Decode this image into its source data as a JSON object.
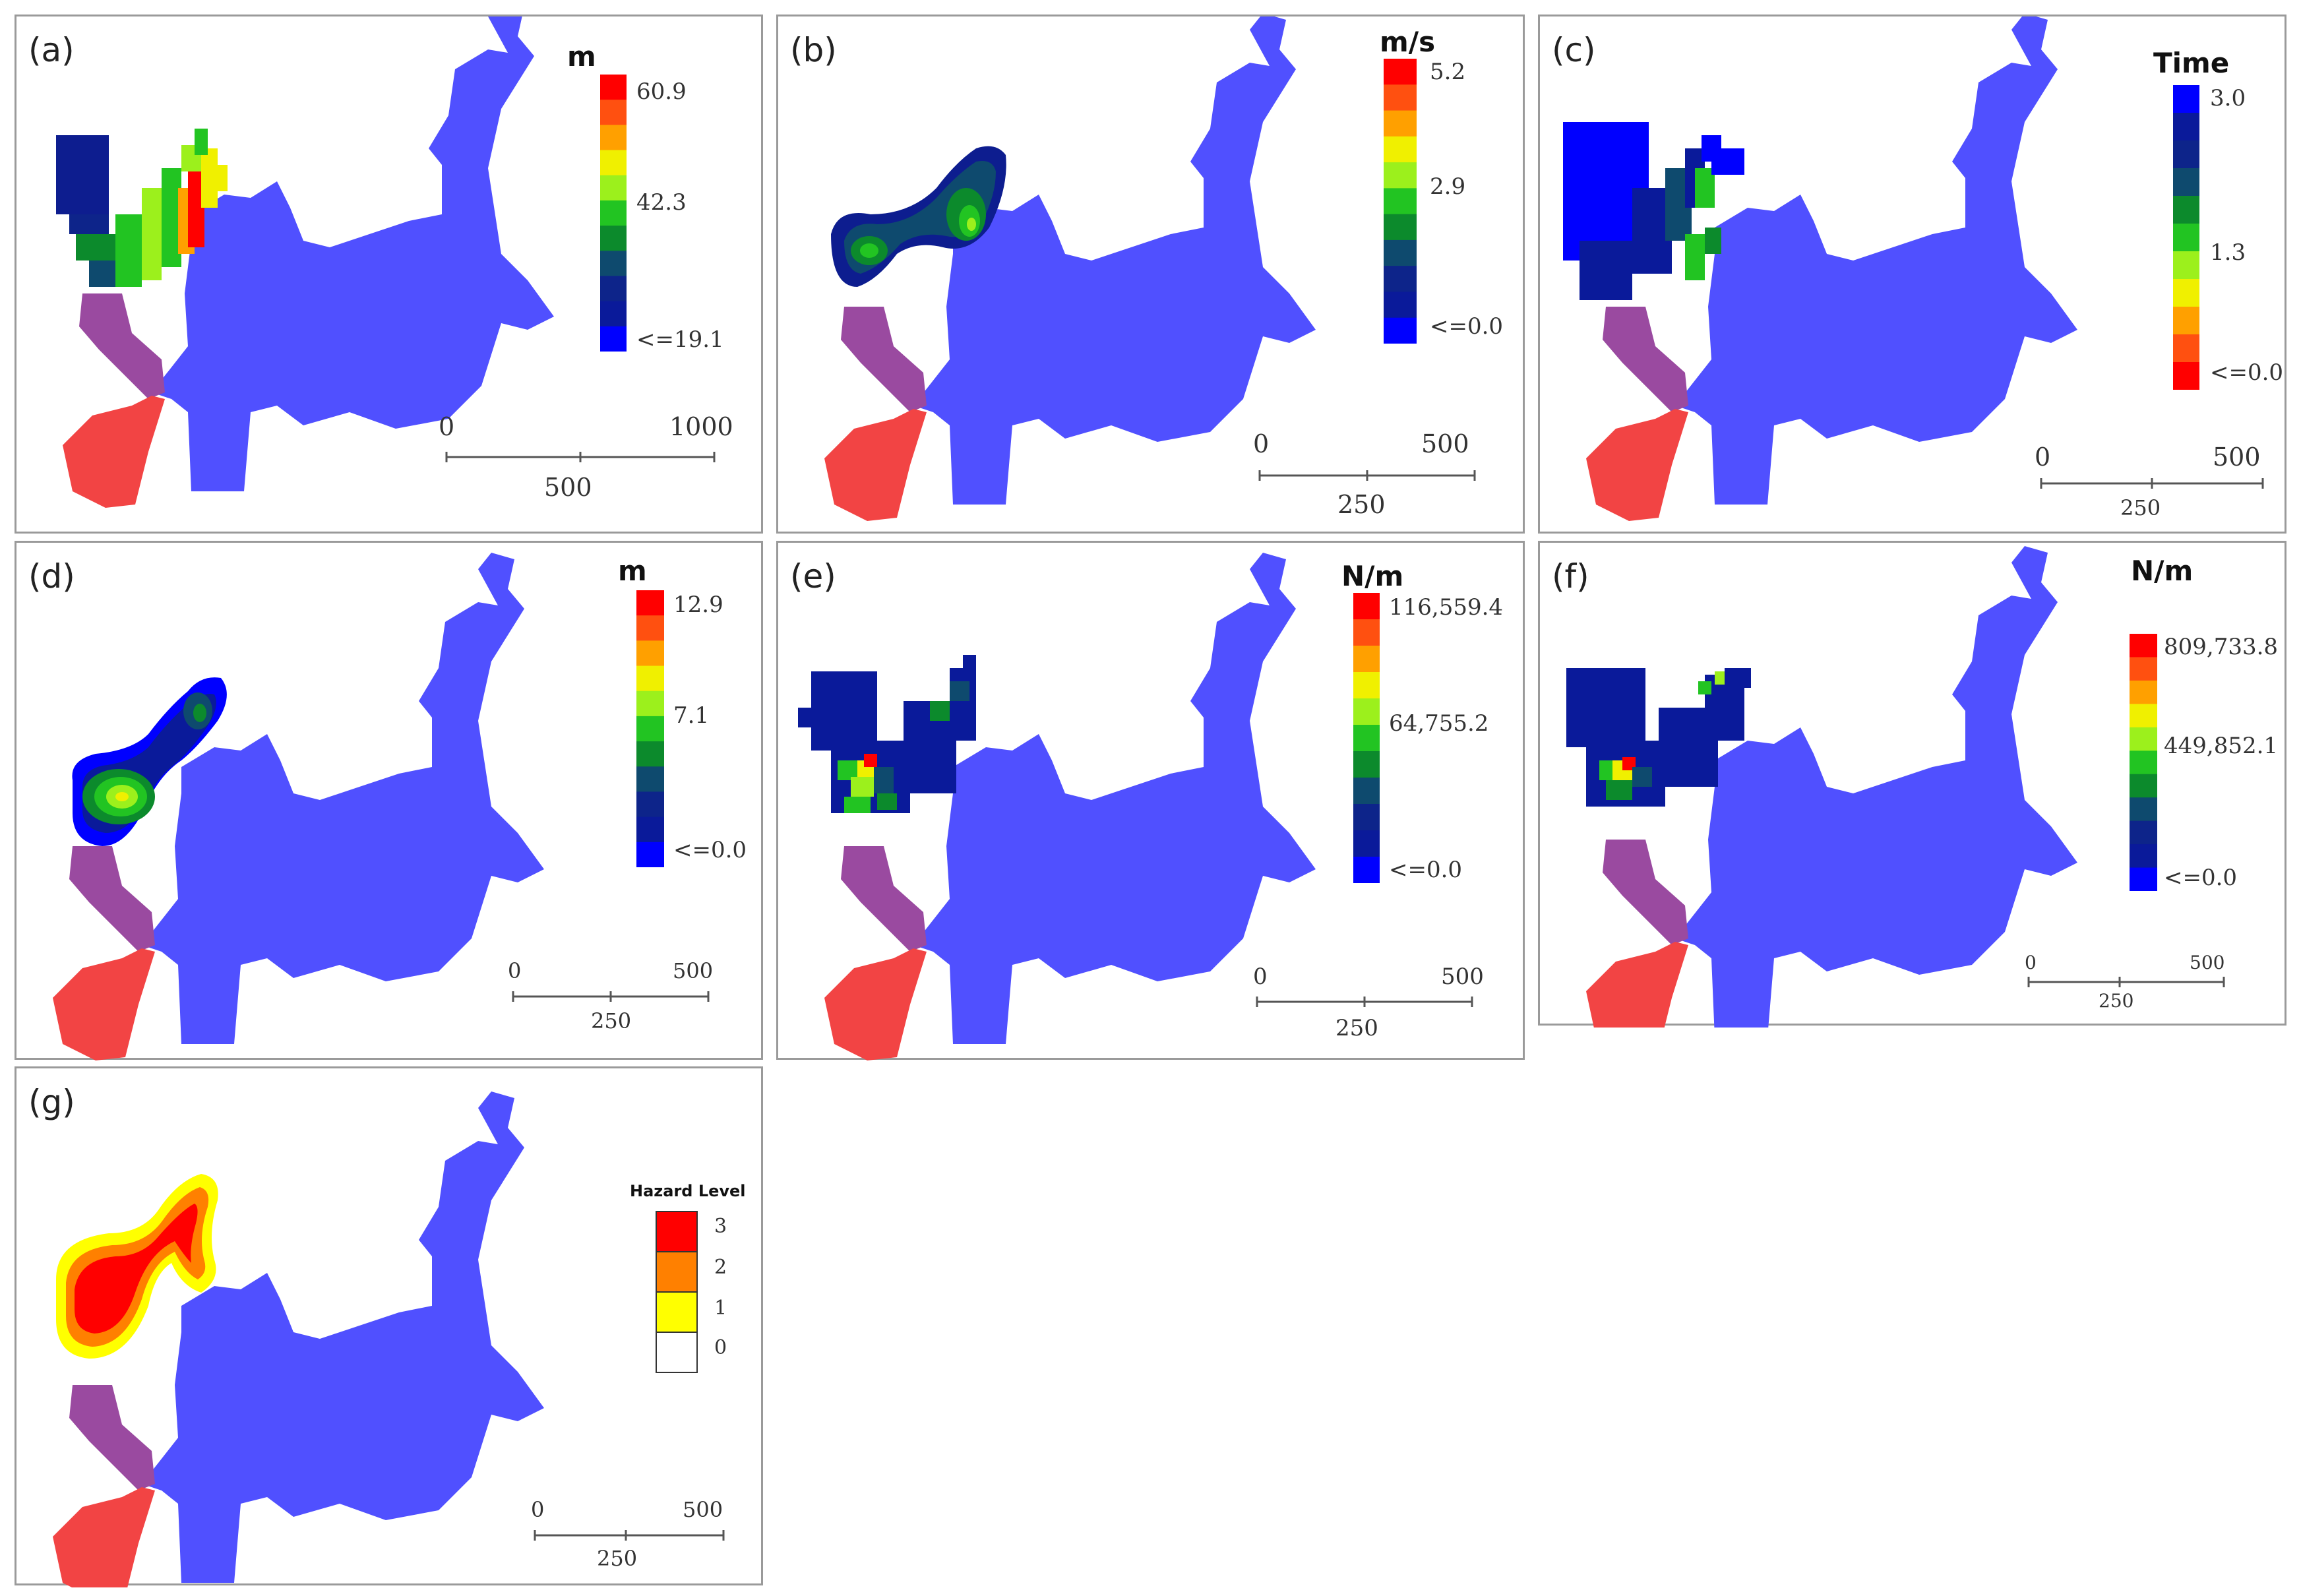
{
  "colors": {
    "region_blue": "#5050ff",
    "channel_purple": "#9a4aa0",
    "source_red": "#f24444",
    "dark_navy": "#0d1d8f",
    "ramp": [
      "#0000ff",
      "#0a1a9a",
      "#0d248a",
      "#0e4a6e",
      "#0c8a2c",
      "#22c422",
      "#9cf01c",
      "#f0f000",
      "#ffa000",
      "#ff5010",
      "#ff0000"
    ],
    "hazard": [
      "#ffffff",
      "#ffff00",
      "#ff8000",
      "#ff0000"
    ]
  },
  "panels": [
    {
      "id": "a",
      "label": "(a)",
      "unit": "m",
      "ticks": [
        "60.9",
        "42.3",
        "<=19.1"
      ],
      "scale": {
        "left": "0",
        "right": "1000",
        "mid": "500"
      }
    },
    {
      "id": "b",
      "label": "(b)",
      "unit": "m/s",
      "ticks": [
        "5.2",
        "2.9",
        "<=0.0"
      ],
      "scale": {
        "left": "0",
        "right": "500",
        "mid": "250"
      }
    },
    {
      "id": "c",
      "label": "(c)",
      "unit": "Time",
      "ticks": [
        "3.0",
        "1.3",
        "<=0.0"
      ],
      "scale": {
        "left": "0",
        "right": "500",
        "mid": "250"
      }
    },
    {
      "id": "d",
      "label": "(d)",
      "unit": "m",
      "ticks": [
        "12.9",
        "7.1",
        "<=0.0"
      ],
      "scale": {
        "left": "0",
        "right": "500",
        "mid": "250"
      }
    },
    {
      "id": "e",
      "label": "(e)",
      "unit": "N/m",
      "ticks": [
        "116,559.4",
        "64,755.2",
        "<=0.0"
      ],
      "scale": {
        "left": "0",
        "right": "500",
        "mid": "250"
      }
    },
    {
      "id": "f",
      "label": "(f)",
      "unit": "N/m",
      "ticks": [
        "809,733.8",
        "449,852.1",
        "<=0.0"
      ],
      "scale": {
        "left": "0",
        "right": "500",
        "mid": "250"
      }
    },
    {
      "id": "g",
      "label": "(g)",
      "unit": "Hazard Level",
      "ticks": [
        "3",
        "2",
        "1",
        "0"
      ],
      "scale": {
        "left": "0",
        "right": "500",
        "mid": "250"
      }
    }
  ]
}
